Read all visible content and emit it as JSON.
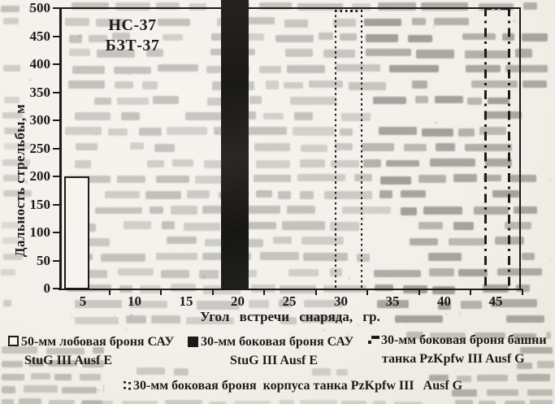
{
  "colors": {
    "ink": "#1d1b17",
    "paper": "#f2f0ea",
    "bleed_text": "#6f6d68"
  },
  "chart_data": {
    "type": "bar",
    "title_lines": [
      "НС-37",
      "БЗТ-37"
    ],
    "xlabel": "Угол встречи снаряда, гр.",
    "ylabel": "Дальность стрельбы, м",
    "x_ticks": [
      5,
      10,
      15,
      20,
      25,
      30,
      35,
      40,
      45
    ],
    "y_ticks": [
      0,
      50,
      100,
      150,
      200,
      250,
      300,
      350,
      400,
      450,
      500
    ],
    "ylim": [
      0,
      500
    ],
    "xlim_degrees": [
      0,
      47.5
    ],
    "grid": false,
    "legend_position": "bottom",
    "series": [
      {
        "name": "50-мм лобовая броня САУ StuG III Ausf E",
        "style": "outline-bar-white",
        "x_from_deg": 3.2,
        "x_to_deg": 5.6,
        "range_m": 200
      },
      {
        "name": "30-мм боковая броня САУ StuG III Ausf E",
        "style": "solid-bar-black",
        "x_from_deg": 18.4,
        "x_to_deg": 21.1,
        "range_m": 500,
        "clipped_above_plot": true
      },
      {
        "name": "30-мм боковая броня башни танка PzKpfw III Ausf G",
        "style": "outline-bar-dash-dot",
        "x_from_deg": 43.9,
        "x_to_deg": 46.2,
        "range_m": 500
      },
      {
        "name": "30-мм боковая броня корпуса танка PzKpfw III Ausf G",
        "style": "outline-bar-dotted",
        "x_from_deg": 29.4,
        "x_to_deg": 31.9,
        "range_m": 500
      }
    ]
  },
  "legend": {
    "items": [
      {
        "marker": "white-square",
        "line1": "50-мм лобовая броня САУ",
        "line2": "StuG III Ausf E"
      },
      {
        "marker": "black-square",
        "line1": "30-мм боковая броня САУ",
        "line2": "StuG III Ausf E"
      },
      {
        "marker": "dash-dot-line",
        "line1": "30-мм боковая броня башни",
        "line2": "танка PzKpfw III Ausf G"
      },
      {
        "marker": "dotted-line",
        "line1": "30-мм боковая броня  корпуса танка PzKpfw III   Ausf G",
        "line2": ""
      }
    ]
  }
}
